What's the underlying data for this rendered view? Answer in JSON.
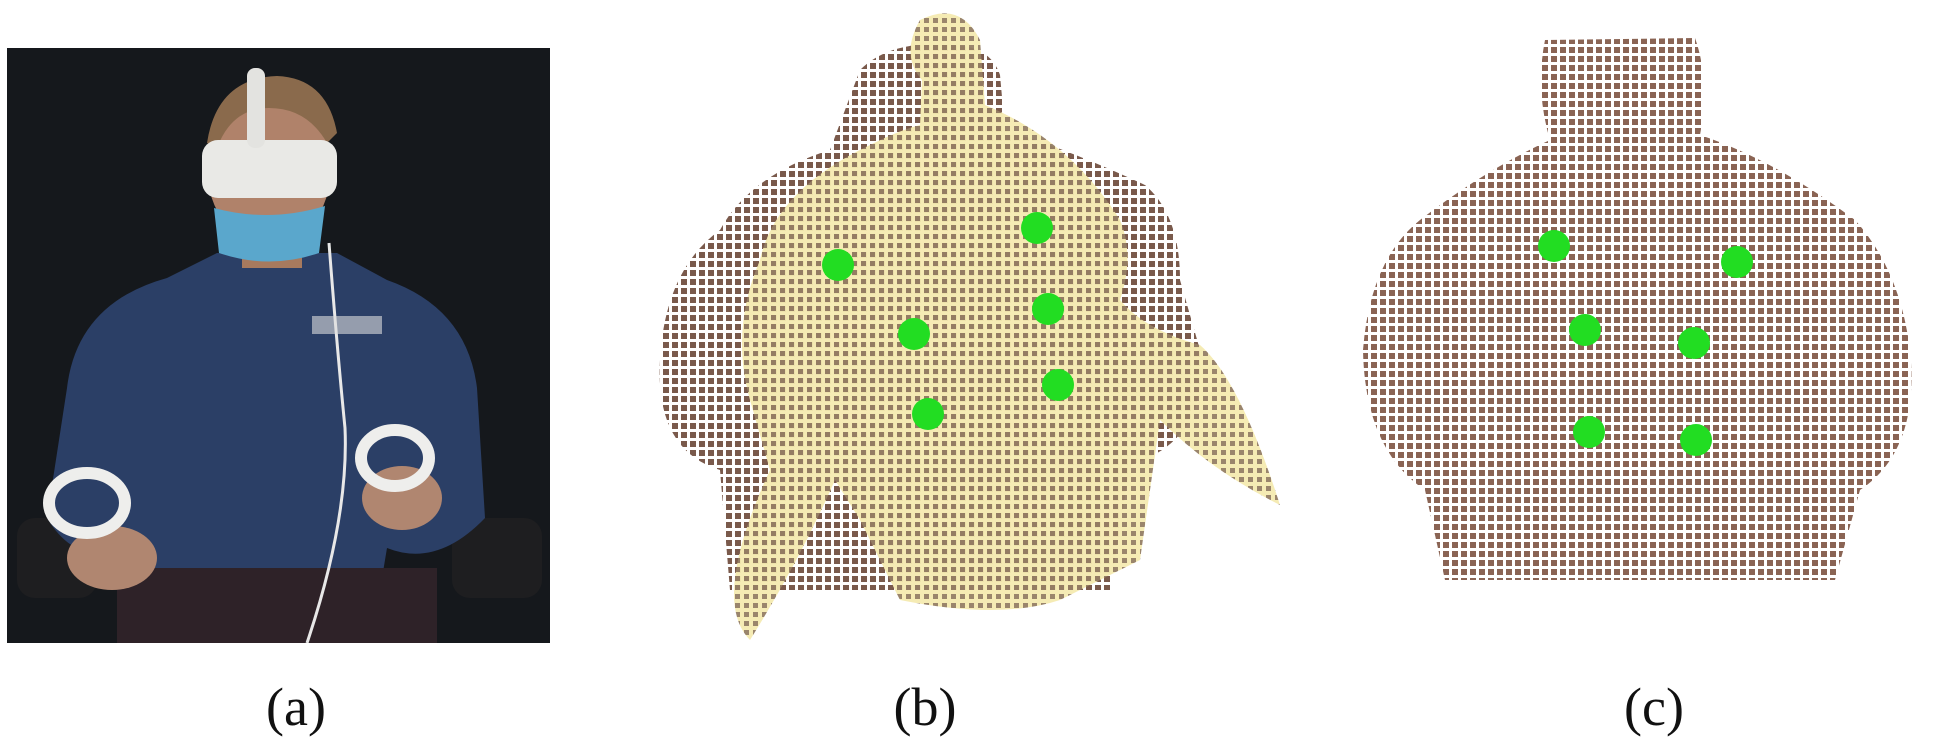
{
  "figure": {
    "panels": [
      {
        "caption": "(a)",
        "content": "person-wearing-vr-headset-holding-controllers"
      },
      {
        "caption": "(b)",
        "content": "back-point-cloud-with-registered-body-mesh"
      },
      {
        "caption": "(c)",
        "content": "back-point-cloud-only"
      }
    ],
    "markers": {
      "color": "#22dd22",
      "panel_b_count": 6,
      "panel_c_count": 6
    },
    "colors": {
      "backdrop": "#15181c",
      "sweater": "#2b3f66",
      "skin": "#a77a5e",
      "mesh": "#f4eab0",
      "headset": "#e9e9e6",
      "mask": "#5aa7cc",
      "chair": "#1e1e20"
    }
  }
}
